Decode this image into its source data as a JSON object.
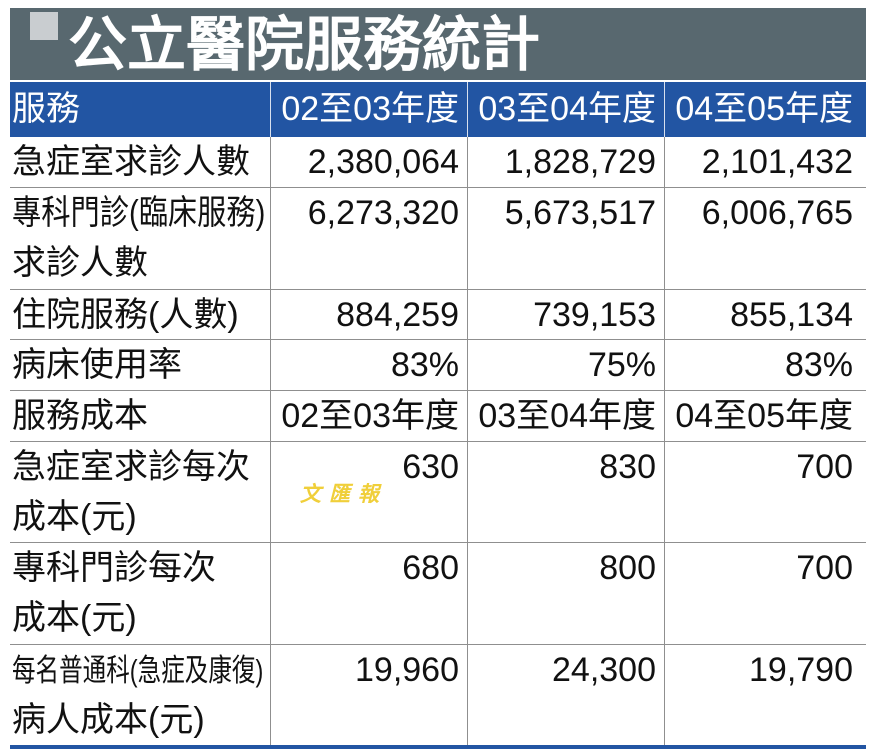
{
  "watermark": "文匯報",
  "colors": {
    "title_bar": "#58686f",
    "title_marker": "#c9cdd0",
    "header": "#2255a3",
    "header_rule": "#d8e0ee",
    "grid": "#8f8f8f",
    "watermark": "#f0cf3a"
  },
  "chart_data": {
    "type": "table",
    "title": "公立醫院服務統計",
    "columns": [
      "服務",
      "02至03年度",
      "03至04年度",
      "04至05年度"
    ],
    "rows": [
      {
        "label": [
          "急症室求診人數"
        ],
        "values": [
          "2,380,064",
          "1,828,729",
          "2,101,432"
        ]
      },
      {
        "label": [
          "專科門診(臨床服務)",
          "求診人數"
        ],
        "values": [
          "6,273,320",
          "5,673,517",
          "6,006,765"
        ]
      },
      {
        "label": [
          "住院服務(人數)"
        ],
        "values": [
          "884,259",
          "739,153",
          "855,134"
        ]
      },
      {
        "label": [
          "病床使用率"
        ],
        "values": [
          "83%",
          "75%",
          "83%"
        ]
      },
      {
        "label": [
          "服務成本"
        ],
        "values": [
          "02至03年度",
          "03至04年度",
          "04至05年度"
        ]
      },
      {
        "label": [
          "急症室求診每次",
          "成本(元)"
        ],
        "values": [
          "630",
          "830",
          "700"
        ]
      },
      {
        "label": [
          "專科門診每次",
          "成本(元)"
        ],
        "values": [
          "680",
          "800",
          "700"
        ]
      },
      {
        "label": [
          "每名普通科(急症及康復)",
          "病人成本(元)"
        ],
        "values": [
          "19,960",
          "24,300",
          "19,790"
        ]
      }
    ]
  }
}
